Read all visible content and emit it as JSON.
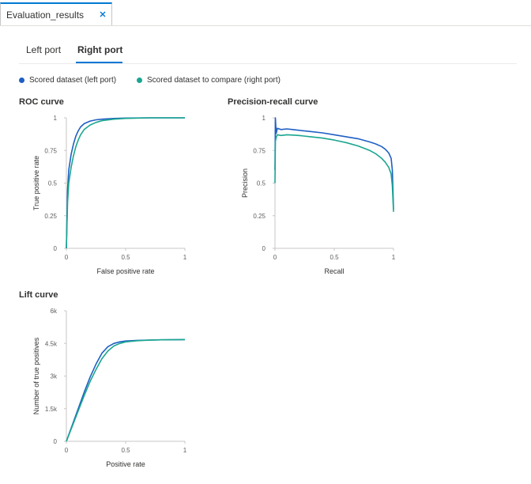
{
  "doc_tab": {
    "title": "Evaluation_results"
  },
  "port_tabs": [
    {
      "label": "Left port",
      "active": false
    },
    {
      "label": "Right port",
      "active": true
    }
  ],
  "legend": [
    {
      "label": "Scored dataset (left port)",
      "color": "#1f5fc4"
    },
    {
      "label": "Scored dataset to compare (right port)",
      "color": "#1aa68f"
    }
  ],
  "colors": {
    "accent": "#0078d4",
    "series_left": "#1f5fc4",
    "series_right": "#1aa68f"
  },
  "chart_data": [
    {
      "type": "line",
      "title": "ROC curve",
      "xlabel": "False positive rate",
      "ylabel": "True positive rate",
      "xlim": [
        0,
        1
      ],
      "ylim": [
        0,
        1
      ],
      "xticks": [
        "0",
        "0.5",
        "1"
      ],
      "yticks": [
        "0",
        "0.25",
        "0.5",
        "0.75",
        "1"
      ],
      "series": [
        {
          "name": "Scored dataset (left port)",
          "x": [
            0,
            0.01,
            0.02,
            0.04,
            0.06,
            0.08,
            0.1,
            0.12,
            0.15,
            0.2,
            0.25,
            0.3,
            0.4,
            0.5,
            0.6,
            0.7,
            0.8,
            0.9,
            1.0
          ],
          "y": [
            0,
            0.45,
            0.6,
            0.72,
            0.8,
            0.86,
            0.9,
            0.93,
            0.955,
            0.975,
            0.985,
            0.99,
            0.995,
            0.998,
            0.999,
            1.0,
            1.0,
            1.0,
            1.0
          ]
        },
        {
          "name": "Scored dataset to compare (right port)",
          "x": [
            0,
            0.01,
            0.02,
            0.04,
            0.06,
            0.08,
            0.1,
            0.12,
            0.15,
            0.2,
            0.25,
            0.3,
            0.4,
            0.5,
            0.6,
            0.7,
            0.8,
            0.9,
            1.0
          ],
          "y": [
            0,
            0.35,
            0.5,
            0.62,
            0.71,
            0.78,
            0.83,
            0.87,
            0.91,
            0.945,
            0.965,
            0.978,
            0.99,
            0.996,
            0.998,
            1.0,
            1.0,
            1.0,
            1.0
          ]
        }
      ]
    },
    {
      "type": "line",
      "title": "Precision-recall curve",
      "xlabel": "Recall",
      "ylabel": "Precision",
      "xlim": [
        0,
        1
      ],
      "ylim": [
        0,
        1
      ],
      "xticks": [
        "0",
        "0.5",
        "1"
      ],
      "yticks": [
        "0",
        "0.25",
        "0.5",
        "0.75",
        "1"
      ],
      "series": [
        {
          "name": "Scored dataset (left port)",
          "x": [
            0,
            0.003,
            0.01,
            0.02,
            0.05,
            0.1,
            0.15,
            0.2,
            0.3,
            0.4,
            0.5,
            0.6,
            0.7,
            0.8,
            0.85,
            0.9,
            0.93,
            0.96,
            0.98,
            0.99,
            1.0
          ],
          "y": [
            0.6,
            1.0,
            0.88,
            0.92,
            0.91,
            0.915,
            0.91,
            0.905,
            0.895,
            0.885,
            0.87,
            0.855,
            0.84,
            0.815,
            0.8,
            0.78,
            0.76,
            0.73,
            0.69,
            0.6,
            0.3
          ]
        },
        {
          "name": "Scored dataset to compare (right port)",
          "x": [
            0,
            0.003,
            0.01,
            0.02,
            0.05,
            0.1,
            0.15,
            0.2,
            0.3,
            0.4,
            0.5,
            0.6,
            0.7,
            0.8,
            0.85,
            0.9,
            0.93,
            0.96,
            0.98,
            0.99,
            1.0
          ],
          "y": [
            0.5,
            0.82,
            0.85,
            0.87,
            0.865,
            0.87,
            0.868,
            0.865,
            0.855,
            0.845,
            0.83,
            0.81,
            0.785,
            0.75,
            0.725,
            0.69,
            0.66,
            0.62,
            0.57,
            0.48,
            0.28
          ]
        }
      ]
    },
    {
      "type": "line",
      "title": "Lift curve",
      "xlabel": "Positive rate",
      "ylabel": "Number of true positives",
      "xlim": [
        0,
        1
      ],
      "ylim": [
        0,
        6000
      ],
      "xticks": [
        "0",
        "0.5",
        "1"
      ],
      "yticks": [
        "0",
        "1.5k",
        "3k",
        "4.5k",
        "6k"
      ],
      "series": [
        {
          "name": "Scored dataset (left port)",
          "x": [
            0,
            0.05,
            0.1,
            0.15,
            0.2,
            0.25,
            0.3,
            0.35,
            0.4,
            0.45,
            0.5,
            0.6,
            0.7,
            0.8,
            0.9,
            1.0
          ],
          "y": [
            0,
            750,
            1500,
            2250,
            2950,
            3550,
            4050,
            4350,
            4500,
            4570,
            4610,
            4640,
            4655,
            4665,
            4670,
            4675
          ]
        },
        {
          "name": "Scored dataset to compare (right port)",
          "x": [
            0,
            0.05,
            0.1,
            0.15,
            0.2,
            0.25,
            0.3,
            0.35,
            0.4,
            0.45,
            0.5,
            0.6,
            0.7,
            0.8,
            0.9,
            1.0
          ],
          "y": [
            0,
            700,
            1400,
            2100,
            2750,
            3300,
            3800,
            4150,
            4380,
            4500,
            4570,
            4625,
            4650,
            4665,
            4670,
            4680
          ]
        }
      ]
    }
  ]
}
